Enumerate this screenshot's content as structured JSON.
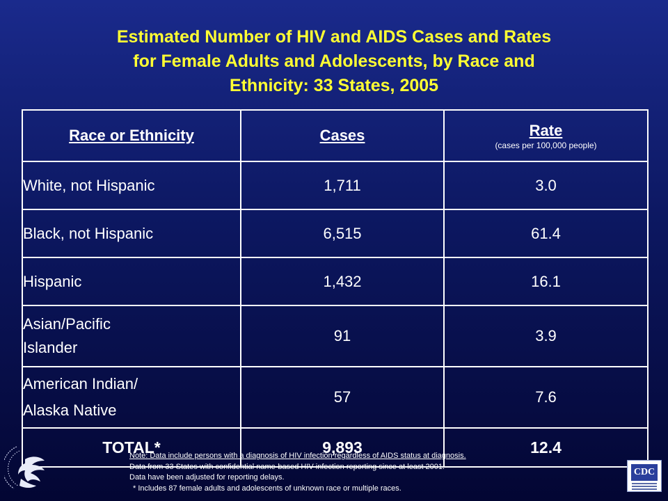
{
  "title": {
    "line1": "Estimated Number of HIV and AIDS Cases and Rates",
    "line2": "for Female Adults and Adolescents, by Race and",
    "line3": "Ethnicity: 33 States, 2005"
  },
  "table": {
    "headers": {
      "race": "Race or Ethnicity",
      "cases": "Cases",
      "rate": "Rate",
      "rate_sub": "(cases per 100,000 people)"
    },
    "rows": [
      {
        "race": "White, not Hispanic",
        "cases": "1,711",
        "rate": "3.0"
      },
      {
        "race": "Black, not Hispanic",
        "cases": "6,515",
        "rate": "61.4"
      },
      {
        "race": "Hispanic",
        "cases": "1,432",
        "rate": "16.1"
      },
      {
        "race_line1": "Asian/Pacific",
        "race_line2": "Islander",
        "cases": "91",
        "rate": "3.9"
      },
      {
        "race_line1": "American Indian/",
        "race_line2": "Alaska Native",
        "cases": "57",
        "rate": "7.6"
      }
    ],
    "total": {
      "label": "TOTAL*",
      "cases": "9,893",
      "rate": "12.4"
    }
  },
  "notes": {
    "line1": "Note: Data include persons with a diagnosis of HIV infection regardless of AIDS status at diagnosis.",
    "line2": "Data from 33 States with confidential name-based HIV infection reporting since at least 2001.",
    "line3": "Data have been adjusted for reporting delays.",
    "line4": "* Includes 87 female adults and adolescents of unknown race or multiple races."
  },
  "logos": {
    "left": "hhs-eagle-seal-icon",
    "right": "cdc-logo-icon",
    "cdc_text": "CDC"
  },
  "colors": {
    "title": "#ffff33",
    "background_top": "#1a2a8c",
    "background_bottom": "#030633",
    "text": "#ffffff"
  }
}
